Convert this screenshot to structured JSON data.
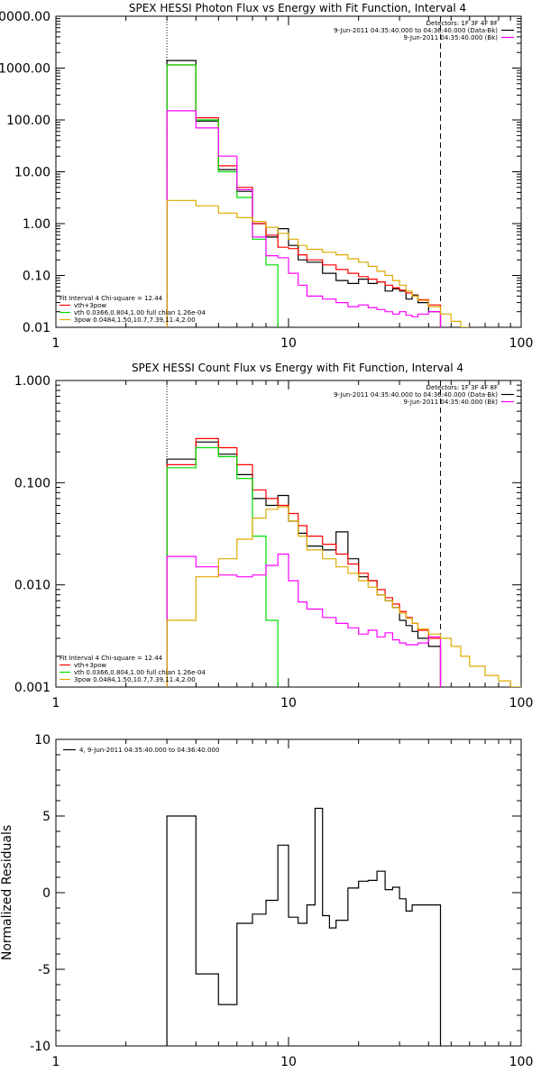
{
  "chart_data": [
    {
      "type": "line",
      "id": "photon",
      "title": "SPEX HESSI Photon Flux vs Energy with Fit Function, Interval 4",
      "xlabel": "",
      "ylabel": "",
      "xscale": "log",
      "yscale": "log",
      "xlim": [
        1,
        100
      ],
      "ylim": [
        0.01,
        10000
      ],
      "xticks": [
        {
          "v": 1,
          "label": "1"
        },
        {
          "v": 10,
          "label": "10"
        },
        {
          "v": 100,
          "label": "100"
        }
      ],
      "yticks": [
        {
          "v": 0.01,
          "label": "0.01"
        },
        {
          "v": 0.1,
          "label": "0.10"
        },
        {
          "v": 1,
          "label": "1.00"
        },
        {
          "v": 10,
          "label": "10.00"
        },
        {
          "v": 100,
          "label": "100.00"
        },
        {
          "v": 1000,
          "label": "1000.00"
        },
        {
          "v": 10000,
          "label": "10000.00"
        }
      ],
      "vlines": [
        {
          "x": 3,
          "style": "dotted"
        },
        {
          "x": 45,
          "style": "dashed"
        }
      ],
      "legend_topright": [
        "Detectors: 1F 3F 4F 8F",
        "9-Jun-2011 04:35:40.000 to 04:36:40.000 (Data-Bk)",
        "9-Jun-2011 04:35:40.000 (Bk)"
      ],
      "legend_bottomleft": [
        "Fit Interval 4   Chi-square = 12.44",
        "vth+3pow",
        "vth 0.0366,0.804,1.00  full chian 1.26e-04",
        "3pow 0.0484,1.50,10.7,7.39,11.4,2.00"
      ],
      "series": [
        {
          "color": "#000000",
          "edges": [
            3,
            4,
            5,
            6,
            7,
            8,
            9,
            10,
            11,
            12,
            14,
            16,
            18,
            20,
            22,
            24,
            26,
            28,
            30,
            32,
            34,
            36,
            40,
            45
          ],
          "values": [
            1400,
            95,
            11,
            4.2,
            1.0,
            0.55,
            0.8,
            0.38,
            0.2,
            0.18,
            0.11,
            0.08,
            0.07,
            0.085,
            0.07,
            0.075,
            0.05,
            0.055,
            0.05,
            0.035,
            0.042,
            0.03,
            0.02
          ]
        },
        {
          "color": "#ff0000",
          "edges": [
            3,
            4,
            5,
            6,
            7,
            8,
            9,
            10,
            11,
            12,
            14,
            16,
            18,
            20,
            22,
            24,
            26,
            28,
            30,
            32,
            34,
            36,
            40,
            45
          ],
          "values": [
            1150,
            110,
            13,
            5,
            1.0,
            0.6,
            0.35,
            0.33,
            0.25,
            0.2,
            0.16,
            0.13,
            0.11,
            0.095,
            0.085,
            0.075,
            0.065,
            0.058,
            0.052,
            0.046,
            0.04,
            0.034,
            0.027
          ]
        },
        {
          "color": "#00dd00",
          "edges": [
            3,
            4,
            5,
            6,
            7,
            8,
            9
          ],
          "values": [
            1150,
            100,
            10,
            3.2,
            0.5,
            0.16
          ]
        },
        {
          "color": "#ff00ff",
          "edges": [
            3,
            4,
            5,
            6,
            7,
            8,
            9,
            10,
            11,
            12,
            14,
            16,
            18,
            20,
            22,
            24,
            26,
            28,
            30,
            32,
            34,
            36,
            40,
            45
          ],
          "values": [
            150,
            70,
            20,
            4.5,
            0.55,
            0.24,
            0.22,
            0.11,
            0.065,
            0.04,
            0.035,
            0.03,
            0.025,
            0.027,
            0.024,
            0.022,
            0.02,
            0.018,
            0.02,
            0.017,
            0.016,
            0.018,
            0.02
          ]
        },
        {
          "color": "#ddaa00",
          "edges": [
            3,
            4,
            5,
            6,
            7,
            8,
            9,
            10,
            11,
            12,
            14,
            16,
            18,
            20,
            22,
            24,
            26,
            28,
            30,
            32,
            34,
            36,
            40,
            45,
            50,
            55,
            60
          ],
          "values": [
            2.8,
            2.2,
            1.6,
            1.3,
            1.1,
            0.85,
            0.65,
            0.5,
            0.38,
            0.32,
            0.28,
            0.25,
            0.21,
            0.18,
            0.15,
            0.12,
            0.1,
            0.08,
            0.065,
            0.05,
            0.04,
            0.033,
            0.025,
            0.018,
            0.013,
            0.01
          ]
        }
      ]
    },
    {
      "type": "line",
      "id": "count",
      "title": "SPEX HESSI Count Flux vs Energy with Fit Function, Interval 4",
      "xlabel": "",
      "ylabel": "",
      "xscale": "log",
      "yscale": "log",
      "xlim": [
        1,
        100
      ],
      "ylim": [
        0.001,
        1
      ],
      "xticks": [
        {
          "v": 1,
          "label": "1"
        },
        {
          "v": 10,
          "label": "10"
        },
        {
          "v": 100,
          "label": "100"
        }
      ],
      "yticks": [
        {
          "v": 0.001,
          "label": "0.001"
        },
        {
          "v": 0.01,
          "label": "0.010"
        },
        {
          "v": 0.1,
          "label": "0.100"
        },
        {
          "v": 1,
          "label": "1.000"
        }
      ],
      "vlines": [
        {
          "x": 3,
          "style": "dotted"
        },
        {
          "x": 45,
          "style": "dashed"
        }
      ],
      "legend_topright": [
        "Detectors: 1F 3F 4F 8F",
        "9-Jun-2011 04:35:40.000 to 04:36:40.000 (Data-Bk)",
        "9-Jun-2011 04:35:40.000 (Bk)"
      ],
      "legend_bottomleft": [
        "Fit Interval 4   Chi-square = 12.44",
        "vth+3pow",
        "vth 0.0366,0.804,1.00  full chian 1.26e-04",
        "3pow 0.0484,1.50,10.7,7.39,11.4,2.00"
      ],
      "series": [
        {
          "color": "#000000",
          "edges": [
            3,
            4,
            5,
            6,
            7,
            8,
            9,
            10,
            11,
            12,
            14,
            16,
            18,
            20,
            22,
            24,
            26,
            28,
            30,
            32,
            34,
            36,
            40,
            45
          ],
          "values": [
            0.17,
            0.25,
            0.19,
            0.12,
            0.07,
            0.06,
            0.075,
            0.042,
            0.032,
            0.024,
            0.022,
            0.033,
            0.018,
            0.012,
            0.011,
            0.008,
            0.007,
            0.006,
            0.0045,
            0.004,
            0.0035,
            0.003,
            0.0025
          ]
        },
        {
          "color": "#ff0000",
          "edges": [
            3,
            4,
            5,
            6,
            7,
            8,
            9,
            10,
            11,
            12,
            14,
            16,
            18,
            20,
            22,
            24,
            26,
            28,
            30,
            32,
            34,
            36,
            40,
            45
          ],
          "values": [
            0.15,
            0.27,
            0.22,
            0.15,
            0.085,
            0.07,
            0.06,
            0.05,
            0.038,
            0.03,
            0.025,
            0.02,
            0.016,
            0.013,
            0.011,
            0.009,
            0.0075,
            0.0065,
            0.0055,
            0.0048,
            0.0042,
            0.0036,
            0.003
          ]
        },
        {
          "color": "#00dd00",
          "edges": [
            3,
            4,
            5,
            6,
            7,
            8,
            9
          ],
          "values": [
            0.14,
            0.22,
            0.18,
            0.11,
            0.03,
            0.0045
          ]
        },
        {
          "color": "#ff00ff",
          "edges": [
            3,
            4,
            5,
            6,
            7,
            8,
            9,
            10,
            11,
            12,
            14,
            16,
            18,
            20,
            22,
            24,
            26,
            28,
            30,
            32,
            34,
            36,
            40,
            45
          ],
          "values": [
            0.019,
            0.015,
            0.0125,
            0.012,
            0.0125,
            0.0155,
            0.02,
            0.011,
            0.0068,
            0.0058,
            0.0048,
            0.0042,
            0.0038,
            0.0033,
            0.0036,
            0.0031,
            0.0034,
            0.0029,
            0.0027,
            0.0026,
            0.0026,
            0.0027,
            0.0031
          ]
        },
        {
          "color": "#ddaa00",
          "edges": [
            3,
            4,
            5,
            6,
            7,
            8,
            9,
            10,
            11,
            12,
            14,
            16,
            18,
            20,
            22,
            24,
            26,
            28,
            30,
            32,
            34,
            36,
            40,
            45,
            50,
            55,
            60,
            70,
            80,
            90,
            100
          ],
          "values": [
            0.0045,
            0.012,
            0.018,
            0.028,
            0.045,
            0.055,
            0.058,
            0.042,
            0.03,
            0.022,
            0.018,
            0.015,
            0.013,
            0.011,
            0.0095,
            0.008,
            0.007,
            0.006,
            0.0053,
            0.0047,
            0.0042,
            0.0037,
            0.0033,
            0.003,
            0.0025,
            0.002,
            0.0016,
            0.0013,
            0.00115,
            0.001
          ]
        }
      ]
    },
    {
      "type": "line",
      "id": "residuals",
      "title": "",
      "xlabel": "",
      "ylabel": "Normalized Residuals",
      "xscale": "log",
      "yscale": "linear",
      "xlim": [
        1,
        100
      ],
      "ylim": [
        -10,
        10
      ],
      "xticks": [
        {
          "v": 1,
          "label": "1"
        },
        {
          "v": 10,
          "label": "10"
        },
        {
          "v": 100,
          "label": "100"
        }
      ],
      "yticks": [
        {
          "v": -10,
          "label": "-10"
        },
        {
          "v": -5,
          "label": "-5"
        },
        {
          "v": 0,
          "label": "0"
        },
        {
          "v": 5,
          "label": "5"
        },
        {
          "v": 10,
          "label": "10"
        }
      ],
      "vlines": [],
      "legend_topleft": [
        "4, 9-Jun-2011 04:35:40.000 to 04:36:40.000"
      ],
      "series": [
        {
          "color": "#000000",
          "edges": [
            3,
            4,
            5,
            6,
            7,
            8,
            9,
            10,
            11,
            12,
            13,
            14,
            15,
            16,
            18,
            20,
            22,
            24,
            26,
            28,
            30,
            32,
            34,
            36,
            40,
            45
          ],
          "values": [
            5,
            -5.3,
            -7.3,
            -2,
            -1.4,
            -0.5,
            3.1,
            -1.6,
            -2,
            -0.8,
            5.5,
            -1.5,
            -2.3,
            -1.8,
            0.3,
            0.75,
            0.8,
            1.4,
            0.2,
            0.35,
            -0.4,
            -1.2,
            -0.8,
            -0.8,
            -0.8
          ]
        }
      ]
    }
  ]
}
